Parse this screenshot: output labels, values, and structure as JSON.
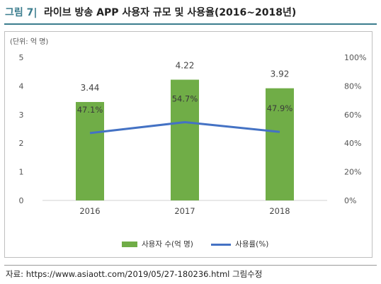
{
  "header": {
    "figure_label": "그림 7|",
    "title": "라이브 방송 APP 사용자 규모 및 사용율(2016~2018년)"
  },
  "unit_label": "(단위: 억 명)",
  "source": "자료: https://www.asiaott.com/2019/05/27-180236.html 그림수정",
  "chart_data": {
    "type": "bar",
    "categories": [
      "2016",
      "2017",
      "2018"
    ],
    "series": [
      {
        "name": "사용자 수(억 명)",
        "type": "bar",
        "axis": "left",
        "values": [
          3.44,
          4.22,
          3.92
        ],
        "data_labels": [
          "3.44",
          "4.22",
          "3.92"
        ],
        "color": "#70ad47"
      },
      {
        "name": "사용률(%)",
        "type": "line",
        "axis": "right",
        "values": [
          47.1,
          54.7,
          47.9
        ],
        "data_labels": [
          "47.1%",
          "54.7%",
          "47.9%"
        ],
        "color": "#4472c4"
      }
    ],
    "left_axis": {
      "ticks": [
        "0",
        "1",
        "2",
        "3",
        "4",
        "5"
      ],
      "ylim": [
        0,
        5
      ]
    },
    "right_axis": {
      "ticks": [
        "0%",
        "20%",
        "40%",
        "60%",
        "80%",
        "100%"
      ],
      "ylim": [
        0,
        100
      ]
    },
    "grid": false,
    "legend": "bottom"
  }
}
